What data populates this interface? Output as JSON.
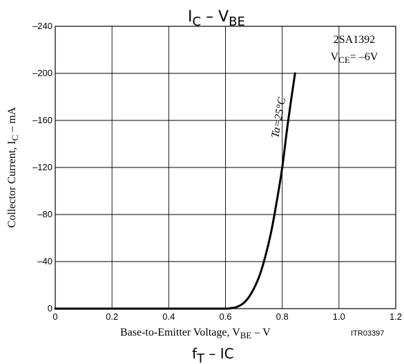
{
  "chart_data": {
    "type": "line",
    "title": {
      "main": "I",
      "sub1": "C",
      "mid": " – V",
      "sub2": "BE"
    },
    "xlabel": {
      "main": "Base-to-Emitter Voltage, V",
      "sub": "BE",
      "tail": " – V"
    },
    "ylabel": {
      "main": "Collector Current, I",
      "sub": "C",
      "tail": " – mA"
    },
    "xlim": [
      0,
      1.2
    ],
    "ylim": [
      0,
      -240
    ],
    "x_ticks": [
      0,
      0.2,
      0.4,
      0.6,
      0.8,
      1.0,
      1.2
    ],
    "x_tick_labels": [
      "0",
      "0.2",
      "0.4",
      "0.6",
      "0.8",
      "1.0",
      "1.2"
    ],
    "y_ticks": [
      0,
      -40,
      -80,
      -120,
      -160,
      -200,
      -240
    ],
    "y_tick_labels": [
      "0",
      "–40",
      "–80",
      "–120",
      "–160",
      "–200",
      "–240"
    ],
    "grid": true,
    "series": [
      {
        "name": "Ta=25°C",
        "x": [
          0,
          0.55,
          0.62,
          0.64,
          0.66,
          0.68,
          0.7,
          0.72,
          0.74,
          0.76,
          0.78,
          0.8,
          0.82,
          0.845
        ],
        "y": [
          0,
          0,
          -0.5,
          -1.5,
          -4,
          -9,
          -17,
          -28,
          -44,
          -64,
          -90,
          -120,
          -158,
          -200
        ]
      }
    ],
    "annotations": {
      "device": "2SA1392",
      "condition": {
        "main": "V",
        "sub": "CE",
        "tail": "= –6V"
      },
      "code": "ITR03397"
    }
  },
  "next_title": {
    "main": "f",
    "sub": "T",
    "tail": "  –  IC"
  }
}
